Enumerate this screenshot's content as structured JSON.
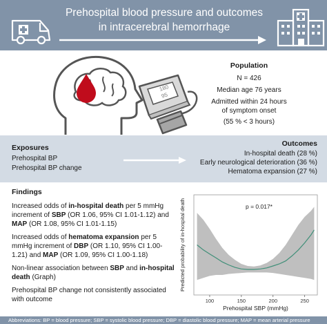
{
  "header": {
    "title_line1": "Prehospital blood pressure and outcomes",
    "title_line2": "in intracerebral hemorrhage",
    "colors": {
      "bar": "#8193a8",
      "white": "#ffffff"
    },
    "icons": [
      "ambulance-icon",
      "arrow-right-icon",
      "hospital-icon"
    ]
  },
  "population": {
    "title": "Population",
    "n": "N = 426",
    "age": "Median age 76 years",
    "admitted_line1": "Admitted within 24 hours",
    "admitted_line2": "of symptom onset",
    "admitted_line3": "(55 % < 3 hours)",
    "monitor_values": [
      "180",
      "95"
    ],
    "icons": [
      "brain-hemorrhage-icon",
      "blood-pressure-monitor-icon"
    ]
  },
  "exposures": {
    "title": "Exposures",
    "items": [
      "Prehospital BP",
      "Prehospital BP change"
    ]
  },
  "outcomes": {
    "title": "Outcomes",
    "items": [
      "In-hospital death (28 %)",
      "Early neurological deterioration (36 %)",
      "Hematoma expansion (27 %)"
    ]
  },
  "findings": {
    "title": "Findings",
    "p1": {
      "pre": "Increased odds of ",
      "b1": "in-hospital death",
      "mid1": " per 5 mmHg increment of ",
      "b2": "SBP",
      "mid2": " (OR 1.06, 95% CI 1.01-1.12) and ",
      "b3": "MAP",
      "post": " (OR 1.08, 95% CI 1.01-1.15)"
    },
    "p2": {
      "pre": "Increased odds of ",
      "b1": "hematoma expansion",
      "mid1": " per 5 mmHg increment of ",
      "b2": "DBP",
      "mid2": " (OR 1.10, 95% CI 1.00-1.21) and ",
      "b3": "MAP",
      "post": " (OR 1.09, 95% CI 1.00-1.18)"
    },
    "p3": {
      "pre": "Non-linear association between ",
      "b1": "SBP",
      "mid1": " and ",
      "b2": "in-hospital death",
      "post": " (Graph)"
    },
    "p4": "Prehospital BP change not consistently associated with outcome"
  },
  "chart_data": {
    "type": "line",
    "xlabel": "Prehospital SBP (mmHg)",
    "ylabel": "Predicted probability of in-hospital death",
    "annotation": "p = 0.017*",
    "xlim": [
      75,
      270
    ],
    "ylim": [
      0,
      1
    ],
    "xticks": [
      100,
      150,
      200,
      250
    ],
    "x": [
      80,
      90,
      100,
      110,
      120,
      130,
      140,
      150,
      160,
      170,
      180,
      190,
      200,
      210,
      220,
      230,
      240,
      250,
      260,
      265
    ],
    "series": [
      {
        "values": [
          0.5,
          0.45,
          0.41,
          0.37,
          0.33,
          0.3,
          0.275,
          0.26,
          0.255,
          0.255,
          0.26,
          0.27,
          0.29,
          0.31,
          0.34,
          0.39,
          0.45,
          0.52,
          0.6,
          0.65
        ],
        "lower": [
          0.15,
          0.17,
          0.19,
          0.2,
          0.2,
          0.21,
          0.215,
          0.22,
          0.225,
          0.225,
          0.225,
          0.225,
          0.22,
          0.21,
          0.2,
          0.19,
          0.18,
          0.17,
          0.16,
          0.15
        ],
        "upper": [
          0.82,
          0.75,
          0.66,
          0.56,
          0.47,
          0.4,
          0.35,
          0.31,
          0.29,
          0.285,
          0.295,
          0.32,
          0.36,
          0.42,
          0.5,
          0.6,
          0.7,
          0.78,
          0.84,
          0.88
        ]
      }
    ],
    "colors": {
      "line": "#3f8f78",
      "band": "#bfbfbf"
    }
  },
  "footer": {
    "abbreviations": "Abbreviations: BP = blood pressure; SBP = systolic blood pressure; DBP = diastolic blood pressure; MAP = mean arterial pressure"
  }
}
